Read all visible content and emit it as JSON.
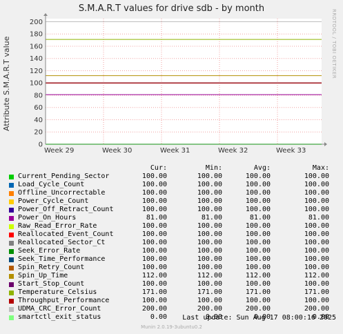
{
  "chart_data": {
    "type": "line",
    "title": "S.M.A.R.T values for drive sdb - by month",
    "ylabel": "Attribute S.M.A.R.T value",
    "xlabel": "",
    "ylim": [
      0,
      205
    ],
    "yticks": [
      0,
      20,
      40,
      60,
      80,
      100,
      120,
      140,
      160,
      180,
      200
    ],
    "x_ticks": [
      "Week 29",
      "Week 30",
      "Week 31",
      "Week 32",
      "Week 33"
    ],
    "grid": true,
    "columns": [
      "Cur:",
      "Min:",
      "Avg:",
      "Max:"
    ],
    "series": [
      {
        "name": "Current_Pending_Sector",
        "color": "#00cc00",
        "values": [
          "100.00",
          "100.00",
          "100.00",
          "100.00"
        ],
        "y": 100
      },
      {
        "name": "Load_Cycle_Count",
        "color": "#0066b3",
        "values": [
          "100.00",
          "100.00",
          "100.00",
          "100.00"
        ],
        "y": 100
      },
      {
        "name": "Offline_Uncorrectable",
        "color": "#ff8000",
        "values": [
          "100.00",
          "100.00",
          "100.00",
          "100.00"
        ],
        "y": 100
      },
      {
        "name": "Power_Cycle_Count",
        "color": "#ffcc00",
        "values": [
          "100.00",
          "100.00",
          "100.00",
          "100.00"
        ],
        "y": 100
      },
      {
        "name": "Power_Off_Retract_Count",
        "color": "#330099",
        "values": [
          "100.00",
          "100.00",
          "100.00",
          "100.00"
        ],
        "y": 100
      },
      {
        "name": "Power_On_Hours",
        "color": "#990099",
        "values": [
          "81.00",
          "81.00",
          "81.00",
          "81.00"
        ],
        "y": 81
      },
      {
        "name": "Raw_Read_Error_Rate",
        "color": "#ccff00",
        "values": [
          "100.00",
          "100.00",
          "100.00",
          "100.00"
        ],
        "y": 100
      },
      {
        "name": "Reallocated_Event_Count",
        "color": "#ff0000",
        "values": [
          "100.00",
          "100.00",
          "100.00",
          "100.00"
        ],
        "y": 100
      },
      {
        "name": "Reallocated_Sector_Ct",
        "color": "#808080",
        "values": [
          "100.00",
          "100.00",
          "100.00",
          "100.00"
        ],
        "y": 100
      },
      {
        "name": "Seek_Error_Rate",
        "color": "#008f00",
        "values": [
          "100.00",
          "100.00",
          "100.00",
          "100.00"
        ],
        "y": 100
      },
      {
        "name": "Seek_Time_Performance",
        "color": "#00487d",
        "values": [
          "100.00",
          "100.00",
          "100.00",
          "100.00"
        ],
        "y": 100
      },
      {
        "name": "Spin_Retry_Count",
        "color": "#b35a00",
        "values": [
          "100.00",
          "100.00",
          "100.00",
          "100.00"
        ],
        "y": 100
      },
      {
        "name": "Spin_Up_Time",
        "color": "#b38f00",
        "values": [
          "112.00",
          "112.00",
          "112.00",
          "112.00"
        ],
        "y": 112
      },
      {
        "name": "Start_Stop_Count",
        "color": "#6b006b",
        "values": [
          "100.00",
          "100.00",
          "100.00",
          "100.00"
        ],
        "y": 100
      },
      {
        "name": "Temperature_Celsius",
        "color": "#8fb300",
        "values": [
          "171.00",
          "171.00",
          "171.00",
          "171.00"
        ],
        "y": 171
      },
      {
        "name": "Throughput_Performance",
        "color": "#b30000",
        "values": [
          "100.00",
          "100.00",
          "100.00",
          "100.00"
        ],
        "y": 100
      },
      {
        "name": "UDMA_CRC_Error_Count",
        "color": "#bebebe",
        "values": [
          "200.00",
          "200.00",
          "200.00",
          "200.00"
        ],
        "y": 200
      },
      {
        "name": "smartctl_exit_status",
        "color": "#80ff80",
        "values": [
          "0.00",
          "0.00",
          "0.00",
          "0.00"
        ],
        "y": 0
      }
    ]
  },
  "vendor_text": "RRDTOOL / TOBI OETIKER",
  "last_update": "Last update:  Sun Aug 17 08:00:16 2025",
  "footer": "Munin 2.0.19-3ubuntu0.2"
}
